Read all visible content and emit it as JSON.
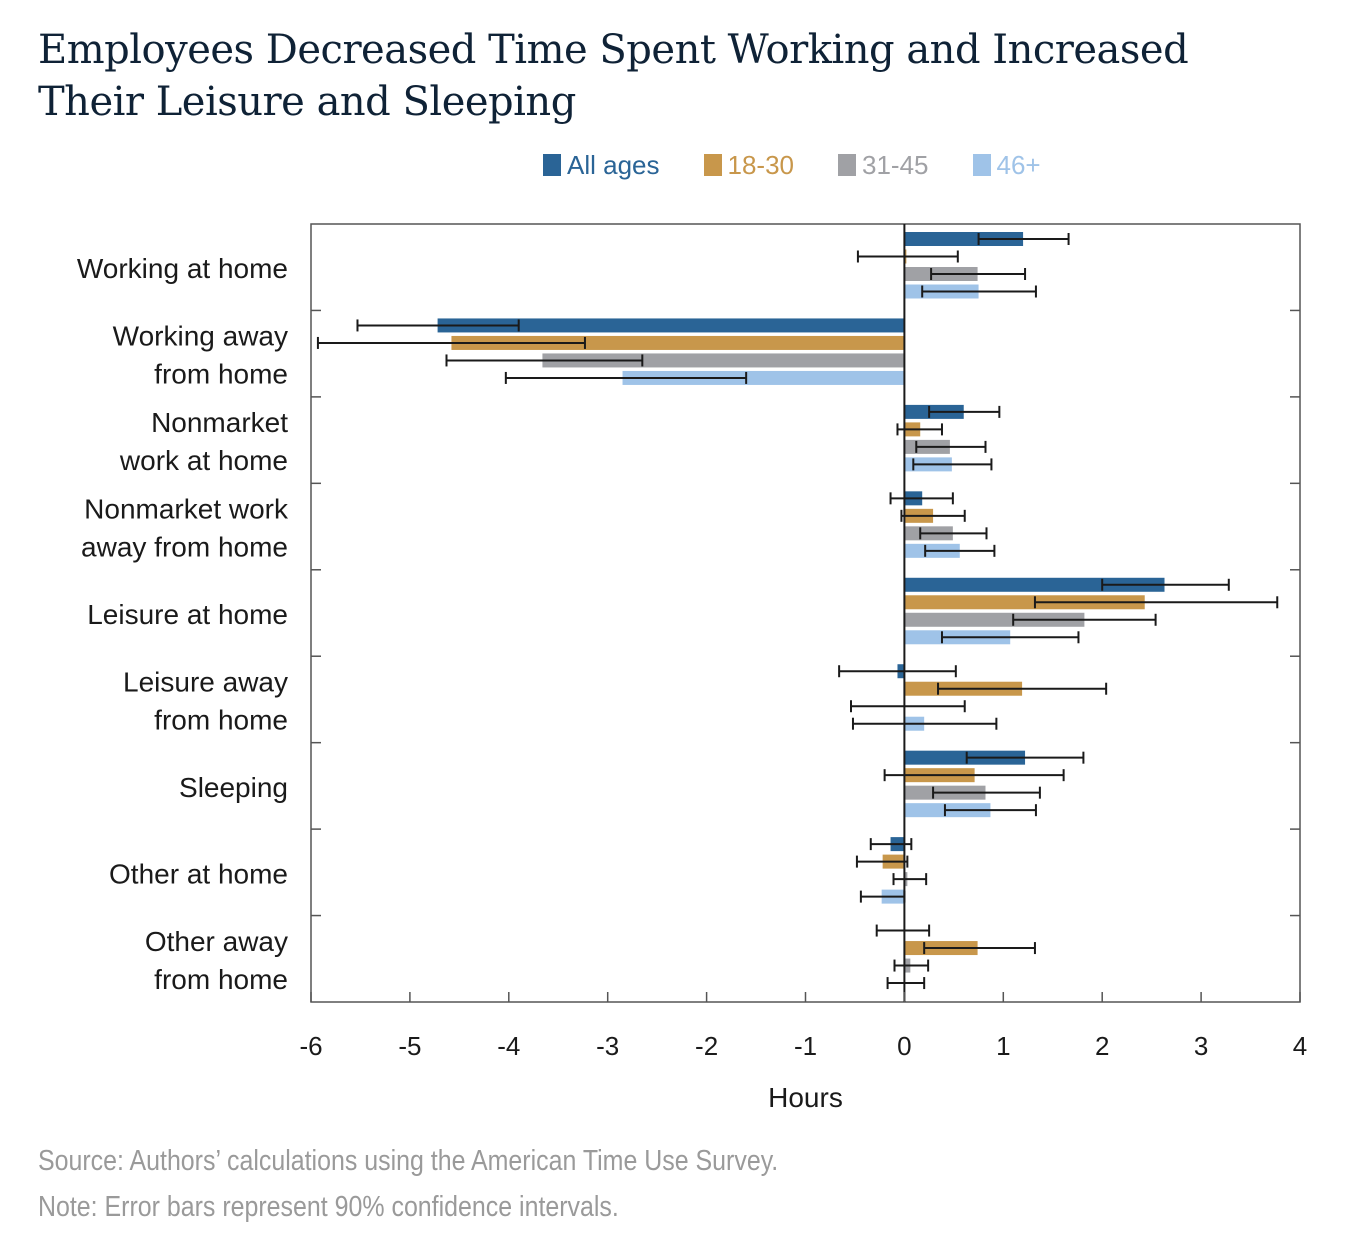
{
  "title": "Employees Decreased Time Spent Working and Increased Their Leisure and Sleeping",
  "footer": {
    "source": "Source: Authors’ calculations using the American Time Use Survey.",
    "note": "Note: Error bars represent 90% confidence intervals."
  },
  "chart_data": {
    "type": "bar",
    "orientation": "horizontal",
    "title": "Employees Decreased Time Spent Working and Increased Their Leisure and Sleeping",
    "xlabel": "Hours",
    "ylabel": "",
    "xlim": [
      -6,
      4
    ],
    "xticks": [
      "-6",
      "-5",
      "-4",
      "-3",
      "-2",
      "-1",
      "0",
      "1",
      "2",
      "3",
      "4"
    ],
    "legend_position": "top-center",
    "grid": false,
    "categories": [
      [
        "Working at home"
      ],
      [
        "Working away",
        "from home"
      ],
      [
        "Nonmarket",
        "work at home"
      ],
      [
        "Nonmarket work",
        "away from home"
      ],
      [
        "Leisure at home"
      ],
      [
        "Leisure away",
        "from home"
      ],
      [
        "Sleeping"
      ],
      [
        "Other at home"
      ],
      [
        "Other away",
        "from home"
      ]
    ],
    "series": [
      {
        "name": "All ages",
        "color": "#2a6496",
        "values": [
          1.2,
          -4.72,
          0.6,
          0.18,
          2.63,
          -0.07,
          1.22,
          -0.14,
          0.0
        ],
        "ci_low": [
          0.75,
          -5.53,
          0.25,
          -0.14,
          2.0,
          -0.66,
          0.63,
          -0.34,
          -0.28
        ],
        "ci_high": [
          1.66,
          -3.9,
          0.96,
          0.49,
          3.28,
          0.52,
          1.81,
          0.07,
          0.25
        ]
      },
      {
        "name": "18-30",
        "color": "#c8974b",
        "values": [
          0.02,
          -4.58,
          0.16,
          0.29,
          2.43,
          1.19,
          0.71,
          -0.22,
          0.74
        ],
        "ci_low": [
          -0.47,
          -5.93,
          -0.07,
          -0.03,
          1.32,
          0.34,
          -0.2,
          -0.48,
          0.2
        ],
        "ci_high": [
          0.54,
          -3.23,
          0.38,
          0.61,
          3.77,
          2.04,
          1.61,
          0.03,
          1.32
        ]
      },
      {
        "name": "31-45",
        "color": "#a0a1a5",
        "values": [
          0.74,
          -3.66,
          0.46,
          0.49,
          1.82,
          0.0,
          0.82,
          0.03,
          0.06
        ],
        "ci_low": [
          0.27,
          -4.63,
          0.12,
          0.16,
          1.1,
          -0.54,
          0.29,
          -0.11,
          -0.1
        ],
        "ci_high": [
          1.22,
          -2.65,
          0.82,
          0.83,
          2.54,
          0.61,
          1.37,
          0.22,
          0.24
        ]
      },
      {
        "name": "46+",
        "color": "#9fc3e8",
        "values": [
          0.75,
          -2.85,
          0.48,
          0.56,
          1.07,
          0.2,
          0.87,
          -0.23,
          0.0
        ],
        "ci_low": [
          0.18,
          -4.03,
          0.09,
          0.21,
          0.38,
          -0.52,
          0.41,
          -0.44,
          -0.17
        ],
        "ci_high": [
          1.33,
          -1.6,
          0.88,
          0.91,
          1.76,
          0.93,
          1.33,
          0.0,
          0.2
        ]
      }
    ]
  }
}
